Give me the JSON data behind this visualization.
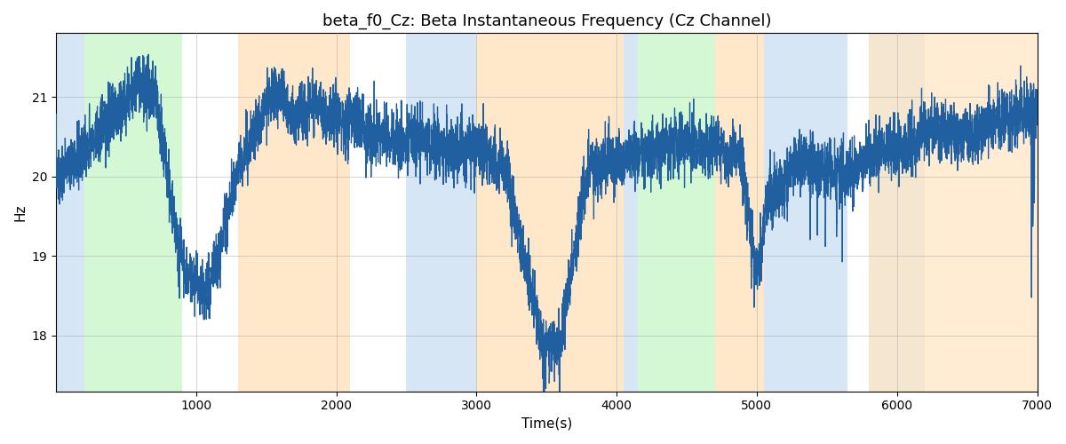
{
  "title": "beta_f0_Cz: Beta Instantaneous Frequency (Cz Channel)",
  "xlabel": "Time(s)",
  "ylabel": "Hz",
  "xlim": [
    0,
    7000
  ],
  "ylim": [
    17.3,
    21.8
  ],
  "yticks": [
    18,
    19,
    20,
    21
  ],
  "xticks": [
    1000,
    2000,
    3000,
    4000,
    5000,
    6000,
    7000
  ],
  "line_color": "#2060a0",
  "line_width": 0.9,
  "background_color": "#ffffff",
  "grid_color": "#aaaaaa",
  "title_fontsize": 13,
  "label_fontsize": 11,
  "bands": [
    {
      "xmin": 0,
      "xmax": 200,
      "color": "#a8c8e8",
      "alpha": 0.45
    },
    {
      "xmin": 200,
      "xmax": 900,
      "color": "#90ee90",
      "alpha": 0.38
    },
    {
      "xmin": 1300,
      "xmax": 2100,
      "color": "#ffd59e",
      "alpha": 0.55
    },
    {
      "xmin": 2500,
      "xmax": 3000,
      "color": "#a8c8e8",
      "alpha": 0.45
    },
    {
      "xmin": 3000,
      "xmax": 4050,
      "color": "#ffd59e",
      "alpha": 0.55
    },
    {
      "xmin": 4050,
      "xmax": 4150,
      "color": "#a8c8e8",
      "alpha": 0.45
    },
    {
      "xmin": 4150,
      "xmax": 4700,
      "color": "#90ee90",
      "alpha": 0.38
    },
    {
      "xmin": 4700,
      "xmax": 5050,
      "color": "#ffd59e",
      "alpha": 0.55
    },
    {
      "xmin": 5050,
      "xmax": 5650,
      "color": "#a8c8e8",
      "alpha": 0.45
    },
    {
      "xmin": 5800,
      "xmax": 6200,
      "color": "#a8c8e8",
      "alpha": 0.2
    },
    {
      "xmin": 5800,
      "xmax": 7000,
      "color": "#ffd59e",
      "alpha": 0.45
    }
  ],
  "seed": 137,
  "n_points": 7000,
  "noise_amp": 0.18,
  "noise_amp2": 0.12
}
